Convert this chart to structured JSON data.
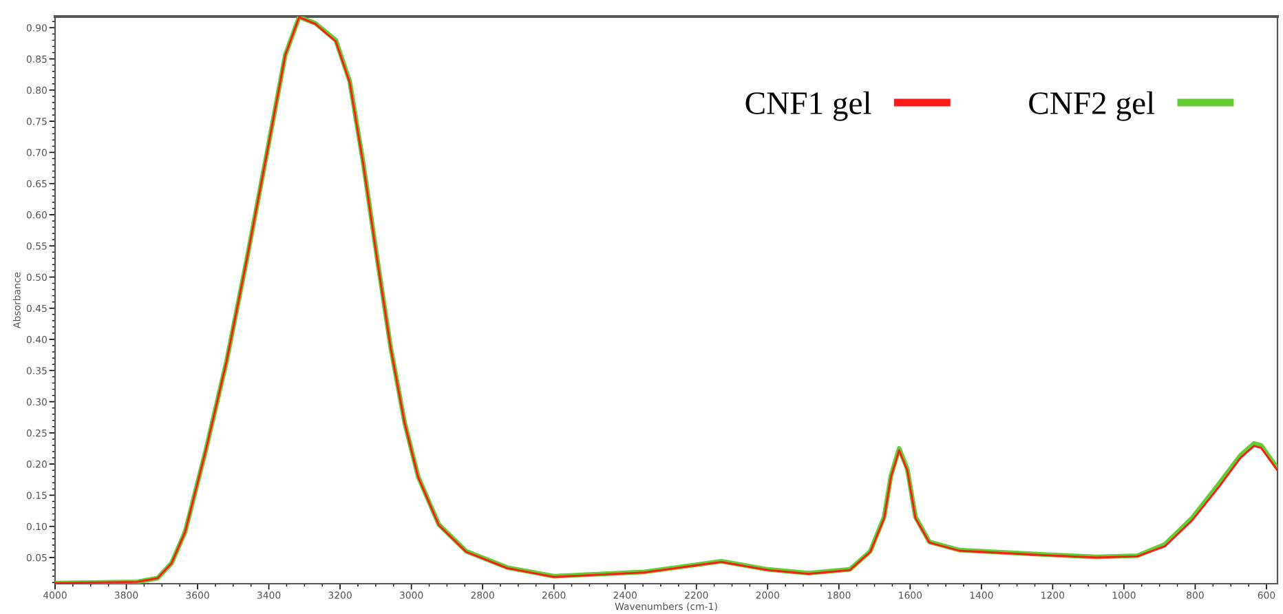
{
  "chart_data": {
    "type": "line",
    "xlabel": "Wavenumbers (cm-1)",
    "ylabel": "Absorbance",
    "xlim": [
      4000,
      569
    ],
    "ylim": [
      0.008,
      0.918
    ],
    "xticks": [
      4000,
      3800,
      3600,
      3400,
      3200,
      3000,
      2800,
      2600,
      2400,
      2200,
      2000,
      1800,
      1600,
      1400,
      1200,
      1000,
      800,
      600
    ],
    "yticks": [
      0.05,
      {
        "value": 0.1,
        "label": "0.10"
      },
      0.15,
      {
        "value": 0.2,
        "label": "0.20"
      },
      0.25,
      {
        "value": 0.3,
        "label": "0.30"
      },
      0.35,
      {
        "value": 0.4,
        "label": "0.40"
      },
      0.45,
      {
        "value": 0.5,
        "label": "0.50"
      },
      0.55,
      {
        "value": 0.6,
        "label": "0.60"
      },
      0.65,
      {
        "value": 0.7,
        "label": "0.70"
      },
      0.75,
      {
        "value": 0.8,
        "label": "0.80"
      },
      0.85,
      {
        "value": 0.9,
        "label": "0.90"
      }
    ],
    "grid": false,
    "legend": "top right",
    "marker": "none",
    "line_style": "solid",
    "series": [
      {
        "name": "CNF1 gel",
        "color": "#ff1a1a",
        "x": [
          4000,
          3770,
          3712,
          3673,
          3635,
          3577,
          3519,
          3462,
          3404,
          3354,
          3315,
          3269,
          3212,
          3173,
          3135,
          3096,
          3058,
          3019,
          2981,
          2923,
          2846,
          2731,
          2600,
          2346,
          2130,
          2000,
          1885,
          1769,
          1712,
          1673,
          1654,
          1631,
          1608,
          1585,
          1546,
          1462,
          1231,
          1077,
          962,
          885,
          808,
          731,
          673,
          635,
          615,
          569
        ],
        "values": [
          0.009,
          0.011,
          0.017,
          0.041,
          0.091,
          0.222,
          0.364,
          0.528,
          0.703,
          0.856,
          0.917,
          0.906,
          0.878,
          0.812,
          0.681,
          0.528,
          0.386,
          0.266,
          0.179,
          0.102,
          0.059,
          0.033,
          0.019,
          0.026,
          0.043,
          0.03,
          0.024,
          0.03,
          0.059,
          0.113,
          0.179,
          0.222,
          0.19,
          0.113,
          0.074,
          0.061,
          0.054,
          0.05,
          0.052,
          0.068,
          0.11,
          0.165,
          0.21,
          0.229,
          0.226,
          0.19
        ]
      },
      {
        "name": "CNF2 gel",
        "color": "#66cc33",
        "x": [
          4000,
          3770,
          3712,
          3673,
          3635,
          3577,
          3519,
          3462,
          3404,
          3354,
          3315,
          3269,
          3212,
          3173,
          3135,
          3096,
          3058,
          3019,
          2981,
          2923,
          2846,
          2731,
          2600,
          2346,
          2130,
          2000,
          1885,
          1769,
          1712,
          1673,
          1654,
          1631,
          1608,
          1585,
          1546,
          1462,
          1231,
          1077,
          962,
          885,
          808,
          731,
          673,
          635,
          615,
          569
        ],
        "values": [
          0.009,
          0.011,
          0.017,
          0.041,
          0.091,
          0.222,
          0.364,
          0.528,
          0.703,
          0.856,
          0.917,
          0.907,
          0.88,
          0.814,
          0.683,
          0.53,
          0.387,
          0.267,
          0.18,
          0.103,
          0.06,
          0.034,
          0.02,
          0.027,
          0.044,
          0.031,
          0.025,
          0.031,
          0.06,
          0.115,
          0.181,
          0.225,
          0.192,
          0.115,
          0.075,
          0.062,
          0.055,
          0.051,
          0.053,
          0.071,
          0.114,
          0.17,
          0.214,
          0.233,
          0.23,
          0.193
        ]
      }
    ]
  }
}
